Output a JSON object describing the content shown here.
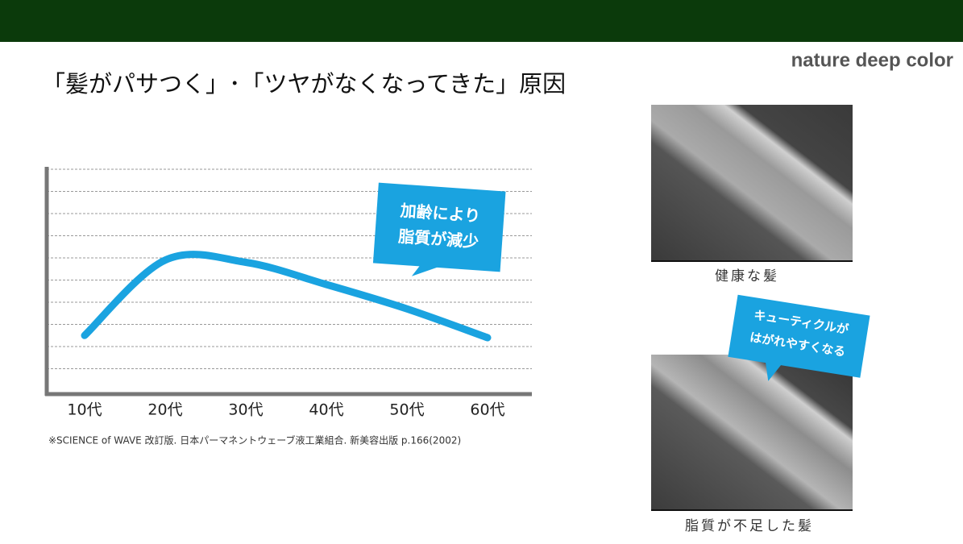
{
  "header": {
    "brand": "nature deep color",
    "title": "「髪がパサつく」･「ツヤがなくなってきた」原因"
  },
  "chart_data": {
    "type": "line",
    "categories": [
      "10代",
      "20代",
      "30代",
      "40代",
      "50代",
      "60代"
    ],
    "series": [
      {
        "name": "脂質",
        "color": "#1aa3e0",
        "values": [
          2.5,
          5.9,
          5.8,
          4.8,
          3.7,
          2.4
        ]
      }
    ],
    "ylim": [
      0,
      10
    ],
    "yticks": [
      1,
      2,
      3,
      4,
      5,
      6,
      7,
      8,
      9,
      10
    ],
    "grid": true,
    "annotation": [
      "加齢により",
      "脂質が減少"
    ],
    "source": "※SCIENCE of WAVE 改訂版. 日本パーマネントウェーブ液工業組合. 新美容出版 p.166(2002)"
  },
  "images": [
    {
      "caption": "健康な髪"
    },
    {
      "caption": "脂質が不足した髪",
      "callout": [
        "キューティクルが",
        "はがれやすくなる"
      ]
    }
  ]
}
